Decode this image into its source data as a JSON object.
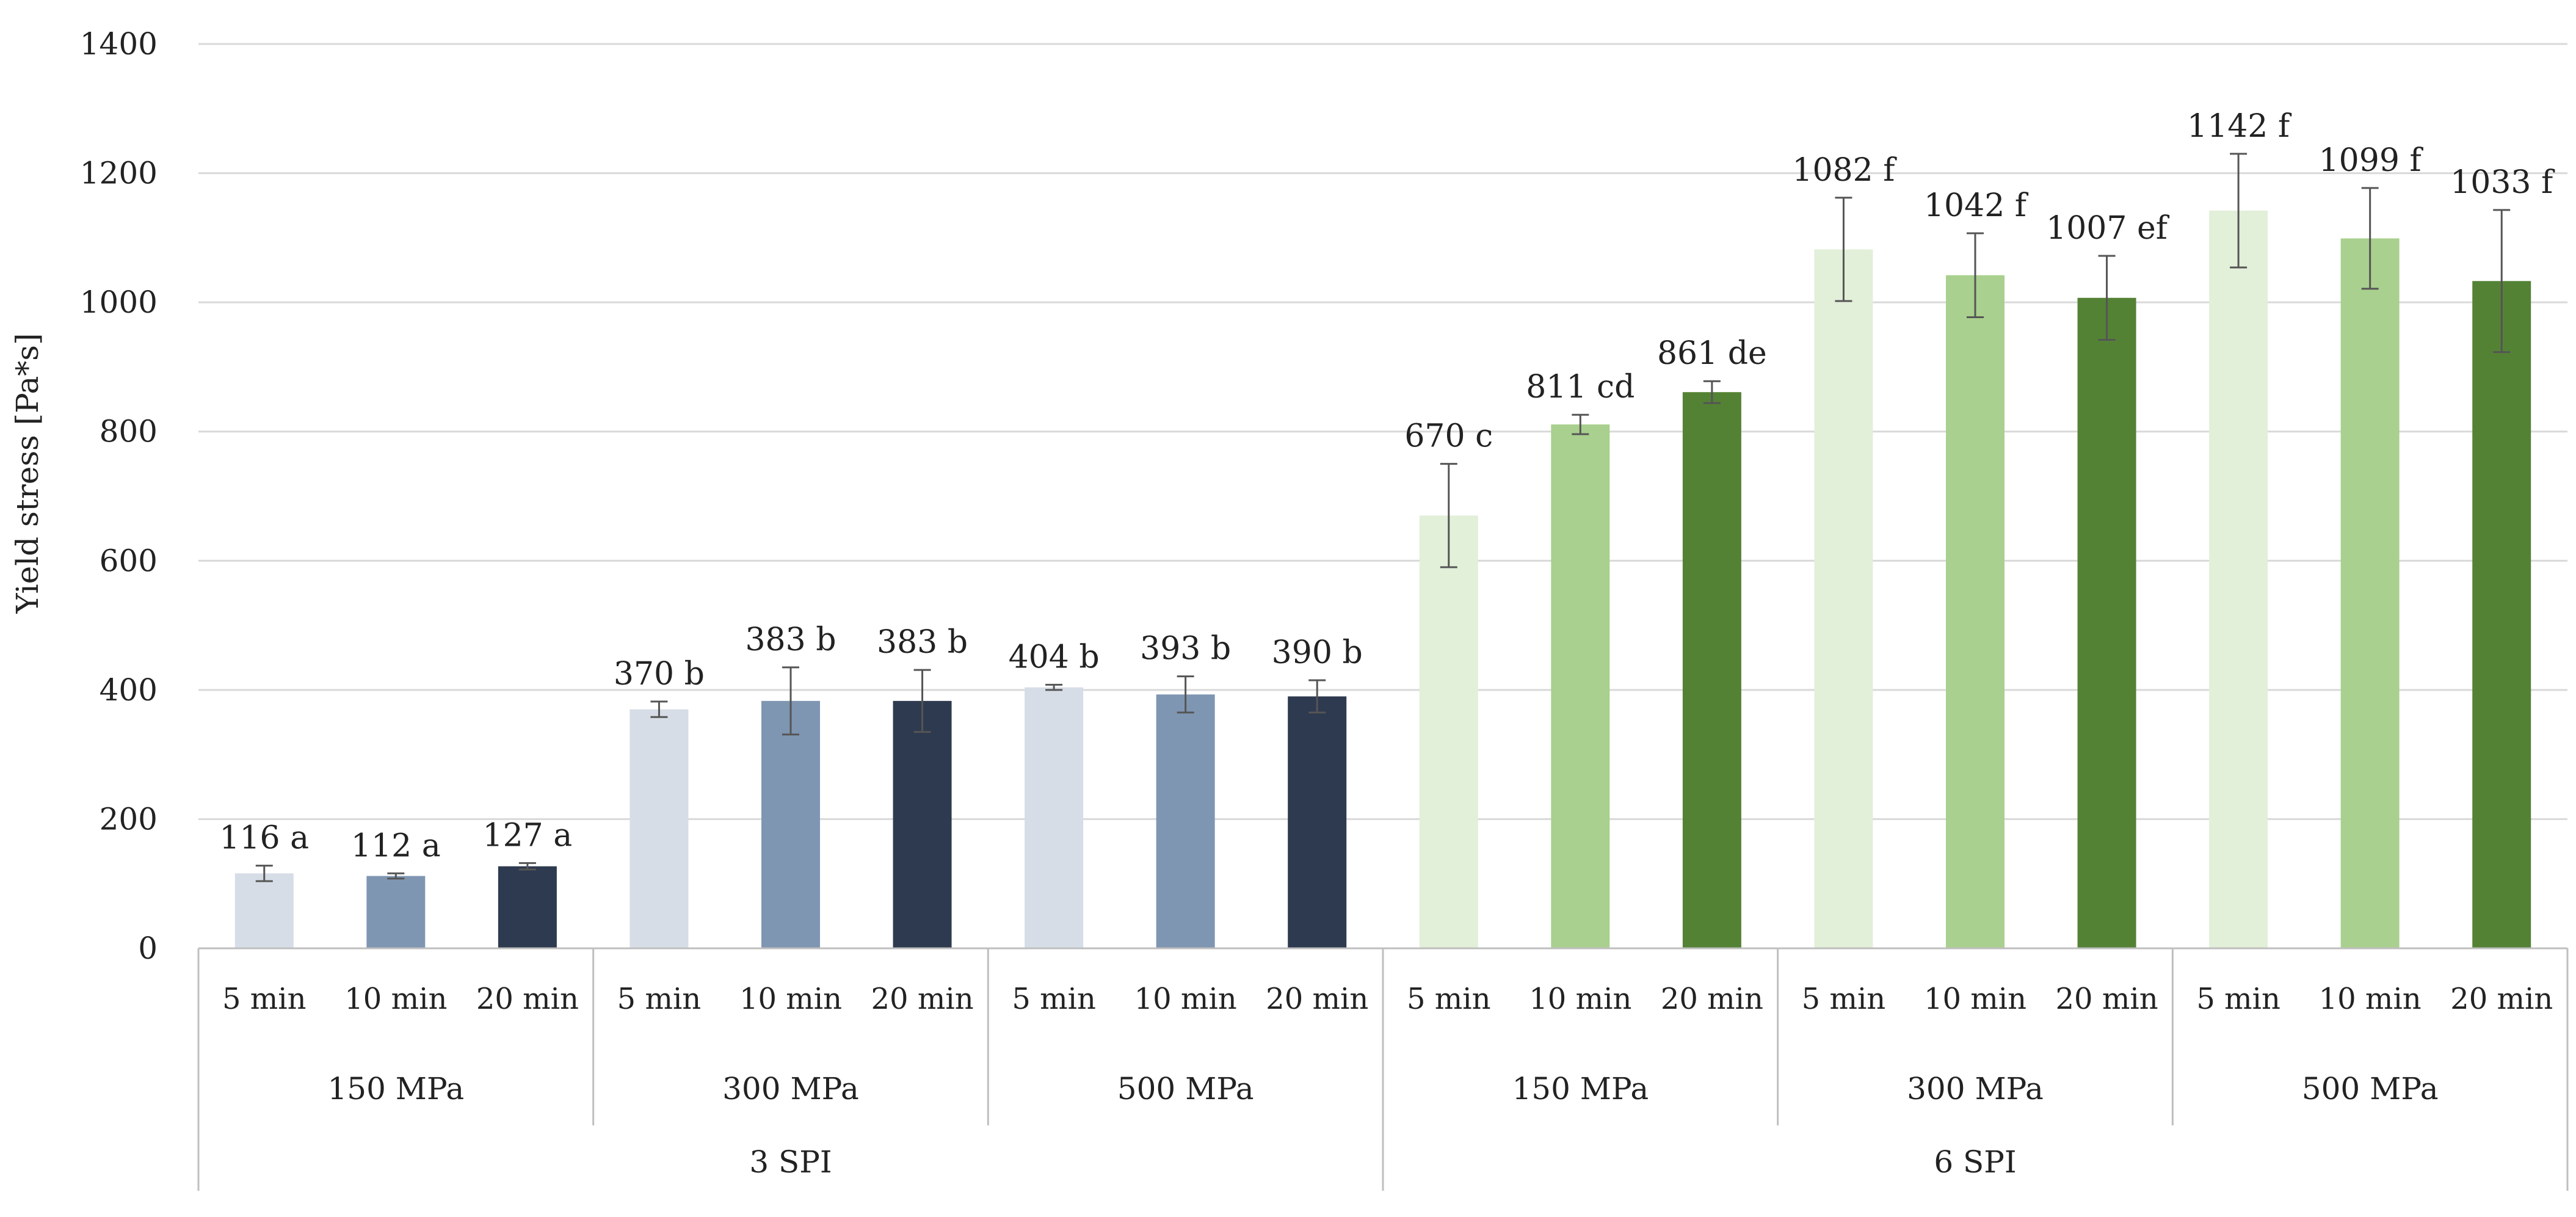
{
  "chart_data": {
    "type": "bar",
    "title": "",
    "ylabel": "Yield stress [Pa*s]",
    "xlabel": "",
    "ylim": [
      0,
      1400
    ],
    "yticks": [
      0,
      200,
      400,
      600,
      800,
      1000,
      1200,
      1400
    ],
    "grid": true,
    "legend": "none",
    "groups": [
      {
        "label": "3 SPI",
        "subgroups": [
          {
            "label": "150 MPa",
            "bars": [
              {
                "label": "5 min",
                "value": 116,
                "error": 12,
                "letters": "a",
                "data_label": "116 a",
                "color": "#d6dde6"
              },
              {
                "label": "10 min",
                "value": 112,
                "error": 4,
                "letters": "a",
                "data_label": "112 a",
                "color": "#7f96b2"
              },
              {
                "label": "20 min",
                "value": 127,
                "error": 5,
                "letters": "a",
                "data_label": "127 a",
                "color": "#2e3a4f"
              }
            ]
          },
          {
            "label": "300 MPa",
            "bars": [
              {
                "label": "5 min",
                "value": 370,
                "error": 12,
                "letters": "b",
                "data_label": "370 b",
                "color": "#d6dde6"
              },
              {
                "label": "10 min",
                "value": 383,
                "error": 52,
                "letters": "b",
                "data_label": "383 b",
                "color": "#7f96b2"
              },
              {
                "label": "20 min",
                "value": 383,
                "error": 48,
                "letters": "b",
                "data_label": "383 b",
                "color": "#2e3a4f"
              }
            ]
          },
          {
            "label": "500 MPa",
            "bars": [
              {
                "label": "5 min",
                "value": 404,
                "error": 4,
                "letters": "b",
                "data_label": "404 b",
                "color": "#d6dde6"
              },
              {
                "label": "10 min",
                "value": 393,
                "error": 28,
                "letters": "b",
                "data_label": "393 b",
                "color": "#7f96b2"
              },
              {
                "label": "20 min",
                "value": 390,
                "error": 25,
                "letters": "b",
                "data_label": "390 b",
                "color": "#2e3a4f"
              }
            ]
          }
        ]
      },
      {
        "label": "6 SPI",
        "subgroups": [
          {
            "label": "150 MPa",
            "bars": [
              {
                "label": "5 min",
                "value": 670,
                "error": 80,
                "letters": "c",
                "data_label": "670 c",
                "color": "#e2efd9"
              },
              {
                "label": "10 min",
                "value": 811,
                "error": 15,
                "letters": "cd",
                "data_label": "811 cd",
                "color": "#a9d08e"
              },
              {
                "label": "20 min",
                "value": 861,
                "error": 17,
                "letters": "de",
                "data_label": "861 de",
                "color": "#548235"
              }
            ]
          },
          {
            "label": "300 MPa",
            "bars": [
              {
                "label": "5 min",
                "value": 1082,
                "error": 80,
                "letters": "f",
                "data_label": "1082 f",
                "color": "#e2efd9"
              },
              {
                "label": "10 min",
                "value": 1042,
                "error": 65,
                "letters": "f",
                "data_label": "1042 f",
                "color": "#a9d08e"
              },
              {
                "label": "20 min",
                "value": 1007,
                "error": 65,
                "letters": "ef",
                "data_label": "1007 ef",
                "color": "#548235"
              }
            ]
          },
          {
            "label": "500 MPa",
            "bars": [
              {
                "label": "5 min",
                "value": 1142,
                "error": 88,
                "letters": "f",
                "data_label": "1142 f",
                "color": "#e2efd9"
              },
              {
                "label": "10 min",
                "value": 1099,
                "error": 78,
                "letters": "f",
                "data_label": "1099 f",
                "color": "#a9d08e"
              },
              {
                "label": "20 min",
                "value": 1033,
                "error": 110,
                "letters": "f",
                "data_label": "1033 f",
                "color": "#548235"
              }
            ]
          }
        ]
      }
    ],
    "colors": {
      "gridline": "#d9d9d9",
      "axis": "#bfbfbf",
      "error_bar": "#555555",
      "text": "#222222"
    }
  }
}
